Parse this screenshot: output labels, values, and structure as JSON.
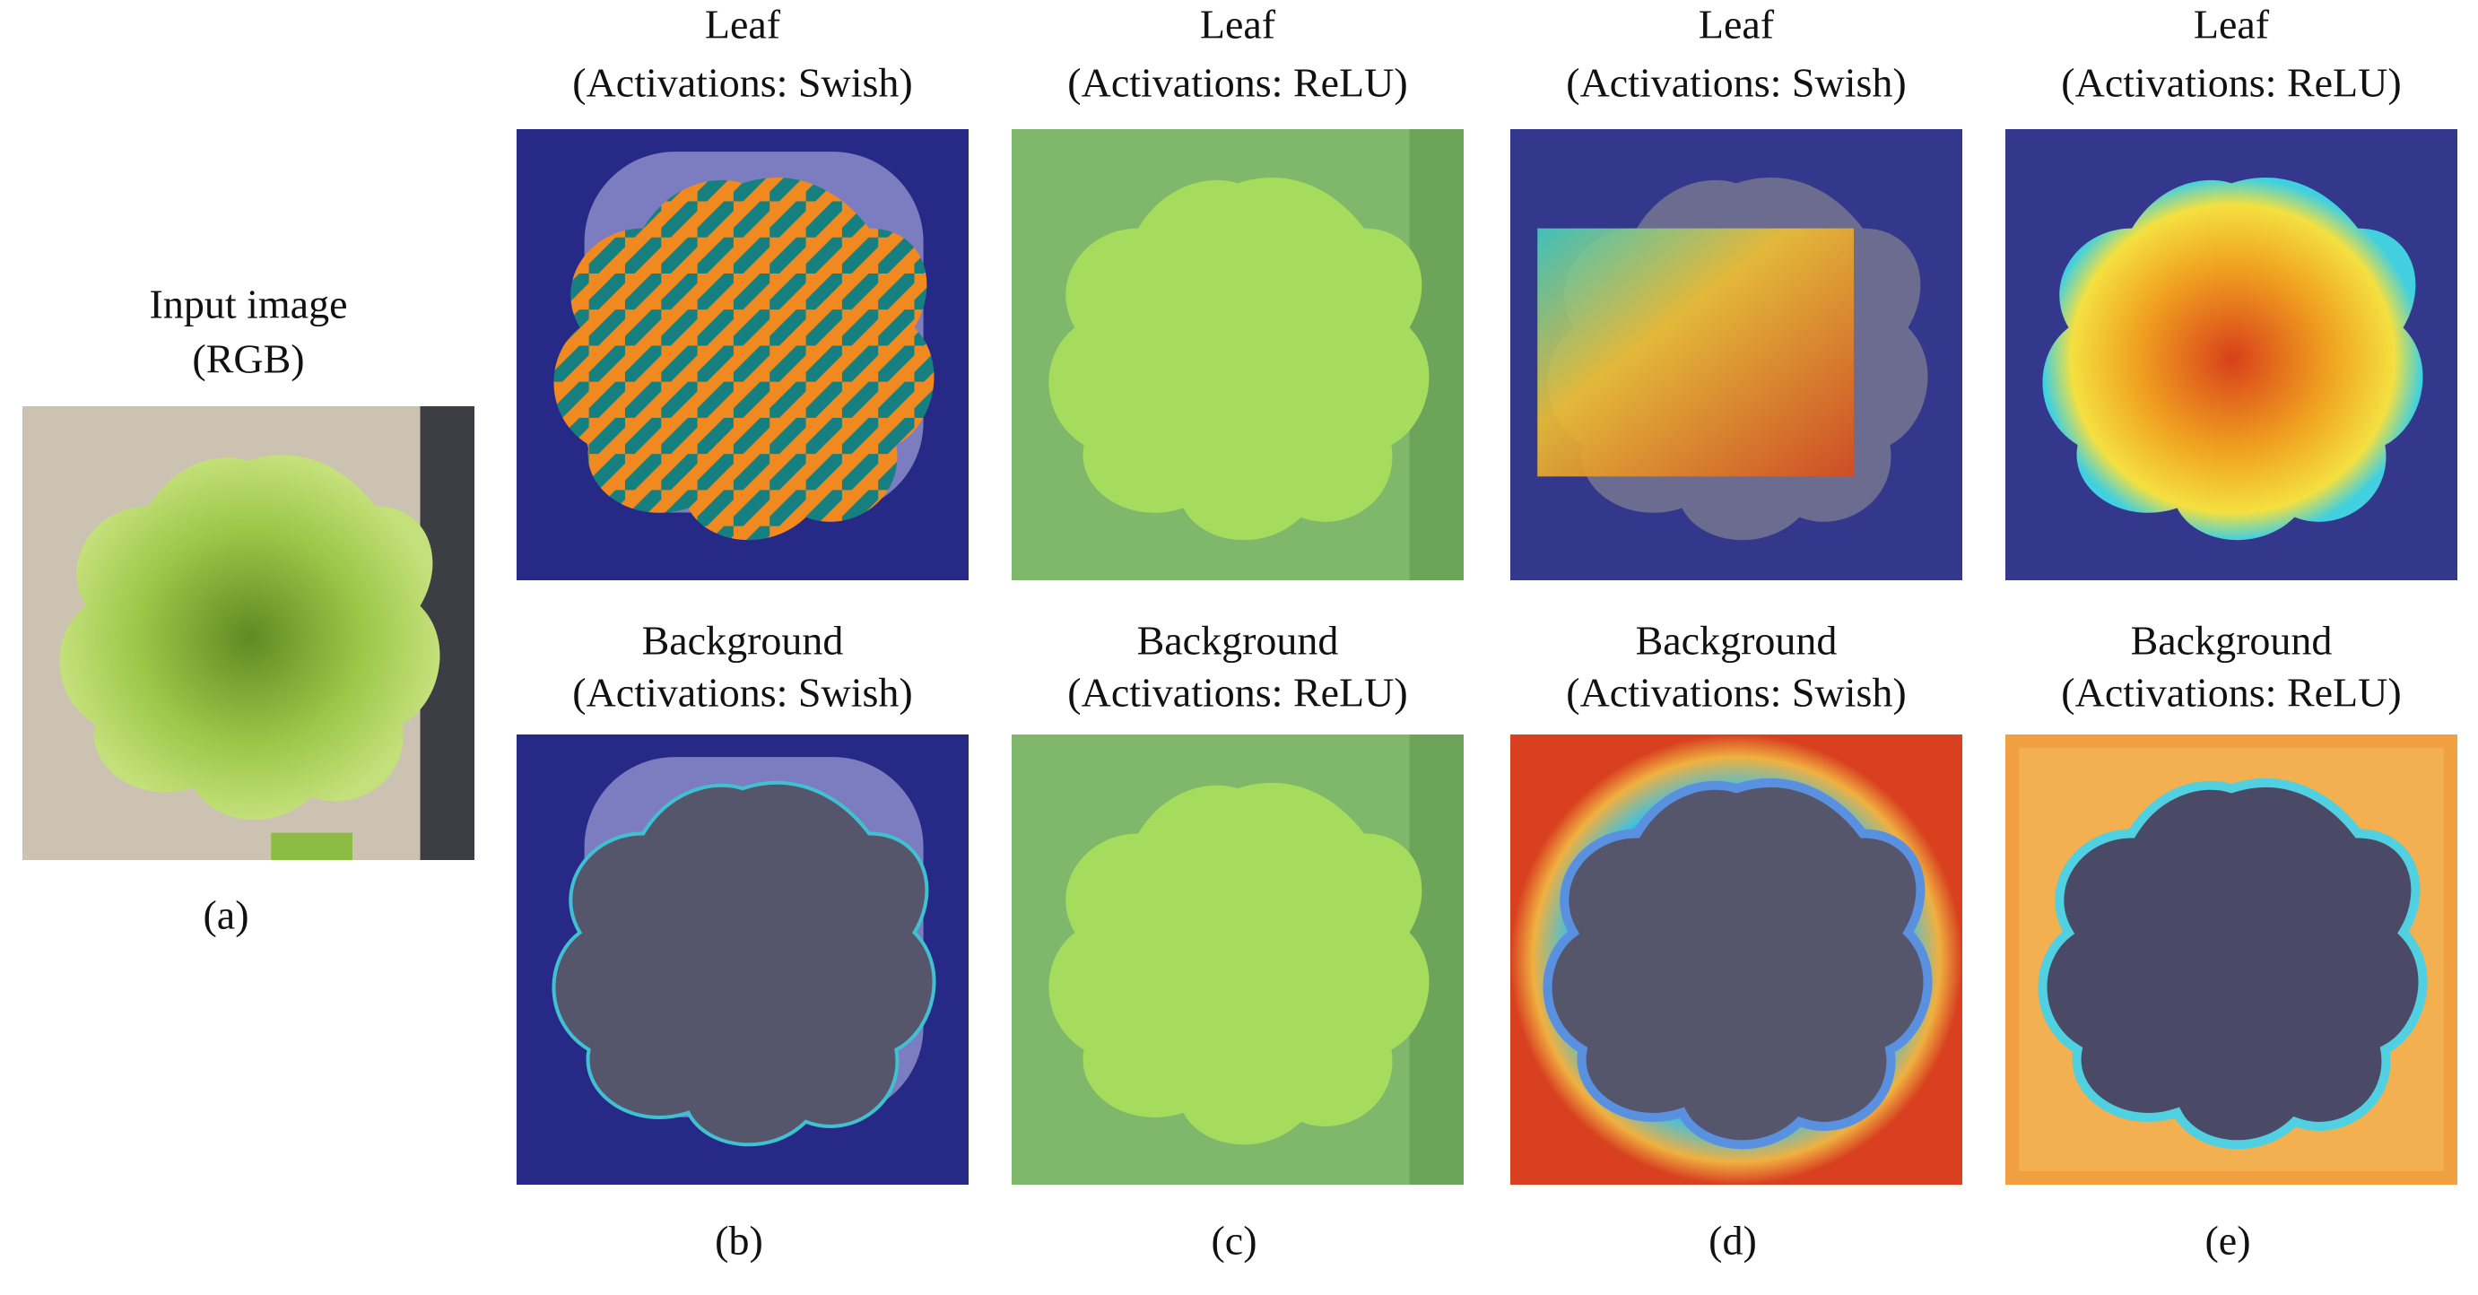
{
  "input": {
    "title": "Input image",
    "subtitle": "(RGB)",
    "label": "(a)"
  },
  "columns": [
    {
      "label": "(b)",
      "rows": [
        {
          "title": "Leaf",
          "subtitle": "(Activations:  Swish)"
        },
        {
          "title": "Background",
          "subtitle": "(Activations:  Swish)"
        }
      ]
    },
    {
      "label": "(c)",
      "rows": [
        {
          "title": "Leaf",
          "subtitle": "(Activations:  ReLU)"
        },
        {
          "title": "Background",
          "subtitle": "(Activations:  ReLU)"
        }
      ]
    },
    {
      "label": "(d)",
      "rows": [
        {
          "title": "Leaf",
          "subtitle": "(Activations:  Swish)"
        },
        {
          "title": "Background",
          "subtitle": "(Activations:  Swish)"
        }
      ]
    },
    {
      "label": "(e)",
      "rows": [
        {
          "title": "Leaf",
          "subtitle": "(Activations:  ReLU)"
        },
        {
          "title": "Background",
          "subtitle": "(Activations:  ReLU)"
        }
      ]
    }
  ]
}
